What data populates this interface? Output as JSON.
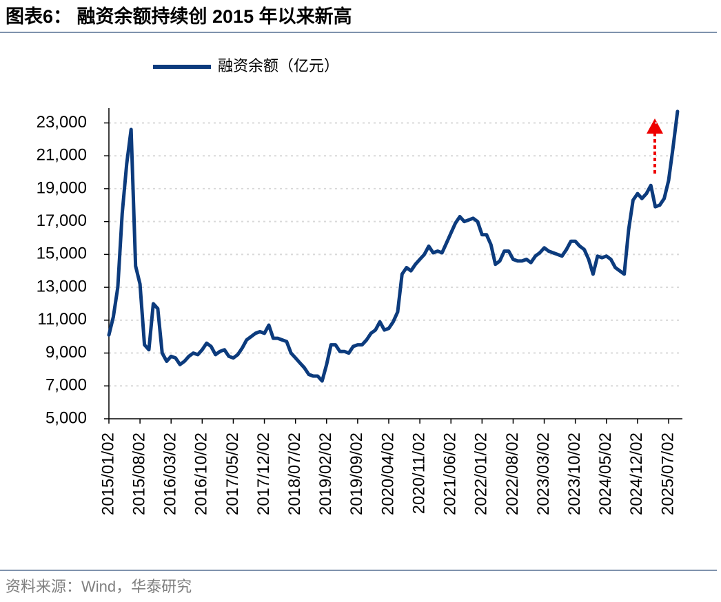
{
  "chart_data": {
    "type": "line",
    "title": "图表6： 融资余额持续创 2015 年以来新高",
    "source": "资料来源：Wind，华泰研究",
    "x": [
      "2015/01/02",
      "2015/02/02",
      "2015/03/02",
      "2015/04/02",
      "2015/05/02",
      "2015/06/02",
      "2015/07/02",
      "2015/08/02",
      "2015/09/02",
      "2015/10/02",
      "2015/11/02",
      "2015/12/02",
      "2016/01/02",
      "2016/02/02",
      "2016/03/02",
      "2016/04/02",
      "2016/05/02",
      "2016/06/02",
      "2016/07/02",
      "2016/08/02",
      "2016/09/02",
      "2016/10/02",
      "2016/11/02",
      "2016/12/02",
      "2017/01/02",
      "2017/02/02",
      "2017/03/02",
      "2017/04/02",
      "2017/05/02",
      "2017/06/02",
      "2017/07/02",
      "2017/08/02",
      "2017/09/02",
      "2017/10/02",
      "2017/11/02",
      "2017/12/02",
      "2018/01/02",
      "2018/02/02",
      "2018/03/02",
      "2018/04/02",
      "2018/05/02",
      "2018/06/02",
      "2018/07/02",
      "2018/08/02",
      "2018/09/02",
      "2018/10/02",
      "2018/11/02",
      "2018/12/02",
      "2019/01/02",
      "2019/02/02",
      "2019/03/02",
      "2019/04/02",
      "2019/05/02",
      "2019/06/02",
      "2019/07/02",
      "2019/08/02",
      "2019/09/02",
      "2019/10/02",
      "2019/11/02",
      "2019/12/02",
      "2020/01/02",
      "2020/02/02",
      "2020/03/02",
      "2020/04/02",
      "2020/05/02",
      "2020/06/02",
      "2020/07/02",
      "2020/08/02",
      "2020/09/02",
      "2020/10/02",
      "2020/11/02",
      "2020/12/02",
      "2021/01/02",
      "2021/02/02",
      "2021/03/02",
      "2021/04/02",
      "2021/05/02",
      "2021/06/02",
      "2021/07/02",
      "2021/08/02",
      "2021/09/02",
      "2021/10/02",
      "2021/11/02",
      "2021/12/02",
      "2022/01/02",
      "2022/02/02",
      "2022/03/02",
      "2022/04/02",
      "2022/05/02",
      "2022/06/02",
      "2022/07/02",
      "2022/08/02",
      "2022/09/02",
      "2022/10/02",
      "2022/11/02",
      "2022/12/02",
      "2023/01/02",
      "2023/02/02",
      "2023/03/02",
      "2023/04/02",
      "2023/05/02",
      "2023/06/02",
      "2023/07/02",
      "2023/08/02",
      "2023/09/02",
      "2023/10/02",
      "2023/11/02",
      "2023/12/02",
      "2024/01/02",
      "2024/02/02",
      "2024/03/02",
      "2024/04/02",
      "2024/05/02",
      "2024/06/02",
      "2024/07/02",
      "2024/08/02",
      "2024/09/02",
      "2024/10/02",
      "2024/11/02",
      "2024/12/02",
      "2025/01/02",
      "2025/02/02",
      "2025/03/02",
      "2025/04/02",
      "2025/05/02",
      "2025/06/02",
      "2025/07/02",
      "2025/08/02",
      "2025/09/02"
    ],
    "series": [
      {
        "name": "融资余额（亿元）",
        "color": "#0c3b7d",
        "values": [
          10100,
          11200,
          13000,
          17500,
          20500,
          22600,
          14300,
          13200,
          9500,
          9200,
          12000,
          11700,
          9000,
          8500,
          8800,
          8700,
          8300,
          8500,
          8800,
          9000,
          8900,
          9200,
          9600,
          9400,
          8900,
          9100,
          9200,
          8800,
          8700,
          8900,
          9300,
          9800,
          10000,
          10200,
          10300,
          10200,
          10700,
          9900,
          9900,
          9800,
          9700,
          9000,
          8700,
          8400,
          8100,
          7700,
          7600,
          7600,
          7300,
          8300,
          9500,
          9500,
          9100,
          9100,
          9000,
          9400,
          9500,
          9500,
          9800,
          10200,
          10400,
          10900,
          10400,
          10500,
          10900,
          11500,
          13800,
          14200,
          14000,
          14400,
          14700,
          15000,
          15500,
          15100,
          15200,
          15100,
          15700,
          16300,
          16900,
          17300,
          17000,
          17100,
          17200,
          17000,
          16200,
          16200,
          15600,
          14400,
          14600,
          15200,
          15200,
          14700,
          14600,
          14600,
          14700,
          14500,
          14900,
          15100,
          15400,
          15200,
          15100,
          15000,
          14900,
          15300,
          15800,
          15800,
          15500,
          15300,
          14700,
          13800,
          14900,
          14800,
          14900,
          14700,
          14200,
          14000,
          13800,
          16500,
          18300,
          18700,
          18400,
          18700,
          19200,
          17900,
          18000,
          18400,
          19500,
          21500,
          23700
        ]
      }
    ],
    "xticks": [
      "2015/01/02",
      "2015/08/02",
      "2016/03/02",
      "2016/10/02",
      "2017/05/02",
      "2017/12/02",
      "2018/07/02",
      "2019/02/02",
      "2019/09/02",
      "2020/04/02",
      "2020/11/02",
      "2021/06/02",
      "2022/01/02",
      "2022/08/02",
      "2023/03/02",
      "2023/10/02",
      "2024/05/02",
      "2024/12/02",
      "2025/07/02"
    ],
    "ylim": [
      5000,
      23900
    ],
    "yticks": [
      {
        "value": 5000,
        "label": "5,000"
      },
      {
        "value": 7000,
        "label": "7,000"
      },
      {
        "value": 9000,
        "label": "9,000"
      },
      {
        "value": 11000,
        "label": "11,000"
      },
      {
        "value": 13000,
        "label": "13,000"
      },
      {
        "value": 15000,
        "label": "15,000"
      },
      {
        "value": 17000,
        "label": "17,000"
      },
      {
        "value": 19000,
        "label": "19,000"
      },
      {
        "value": 21000,
        "label": "21,000"
      },
      {
        "value": 23000,
        "label": "23,000"
      }
    ],
    "grid": true
  }
}
